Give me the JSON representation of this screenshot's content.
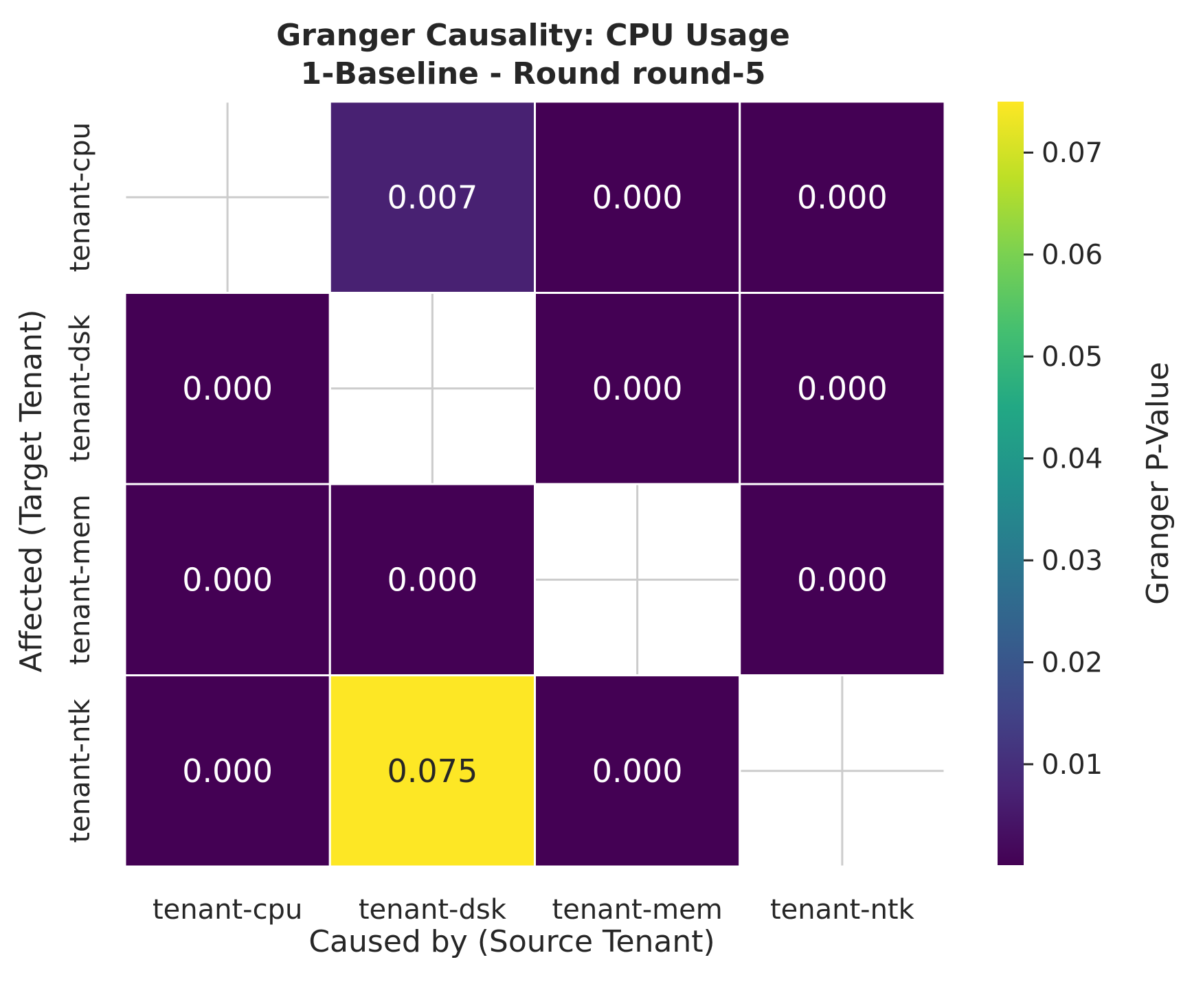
{
  "chart_data": {
    "type": "heatmap",
    "title": "Granger Causality: CPU Usage",
    "subtitle": "1-Baseline - Round round-5",
    "xlabel": "Caused by (Source Tenant)",
    "ylabel": "Affected (Target Tenant)",
    "x_categories": [
      "tenant-cpu",
      "tenant-dsk",
      "tenant-mem",
      "tenant-ntk"
    ],
    "y_categories": [
      "tenant-cpu",
      "tenant-dsk",
      "tenant-mem",
      "tenant-ntk"
    ],
    "values": [
      [
        null,
        0.007,
        0.0,
        0.0
      ],
      [
        0.0,
        null,
        0.0,
        0.0
      ],
      [
        0.0,
        0.0,
        null,
        0.0
      ],
      [
        0.0,
        0.075,
        0.0,
        null
      ]
    ],
    "value_labels": [
      [
        "",
        "0.007",
        "0.000",
        "0.000"
      ],
      [
        "0.000",
        "",
        "0.000",
        "0.000"
      ],
      [
        "0.000",
        "0.000",
        "",
        "0.000"
      ],
      [
        "0.000",
        "0.075",
        "0.000",
        ""
      ]
    ],
    "colorbar": {
      "label": "Granger P-Value",
      "colormap": "viridis",
      "range": [
        0.0001,
        0.075
      ],
      "ticks": [
        0.01,
        0.02,
        0.03,
        0.04,
        0.05,
        0.06,
        0.07
      ],
      "tick_labels": [
        "0.01",
        "0.02",
        "0.03",
        "0.04",
        "0.05",
        "0.06",
        "0.07"
      ]
    },
    "grid": true
  }
}
